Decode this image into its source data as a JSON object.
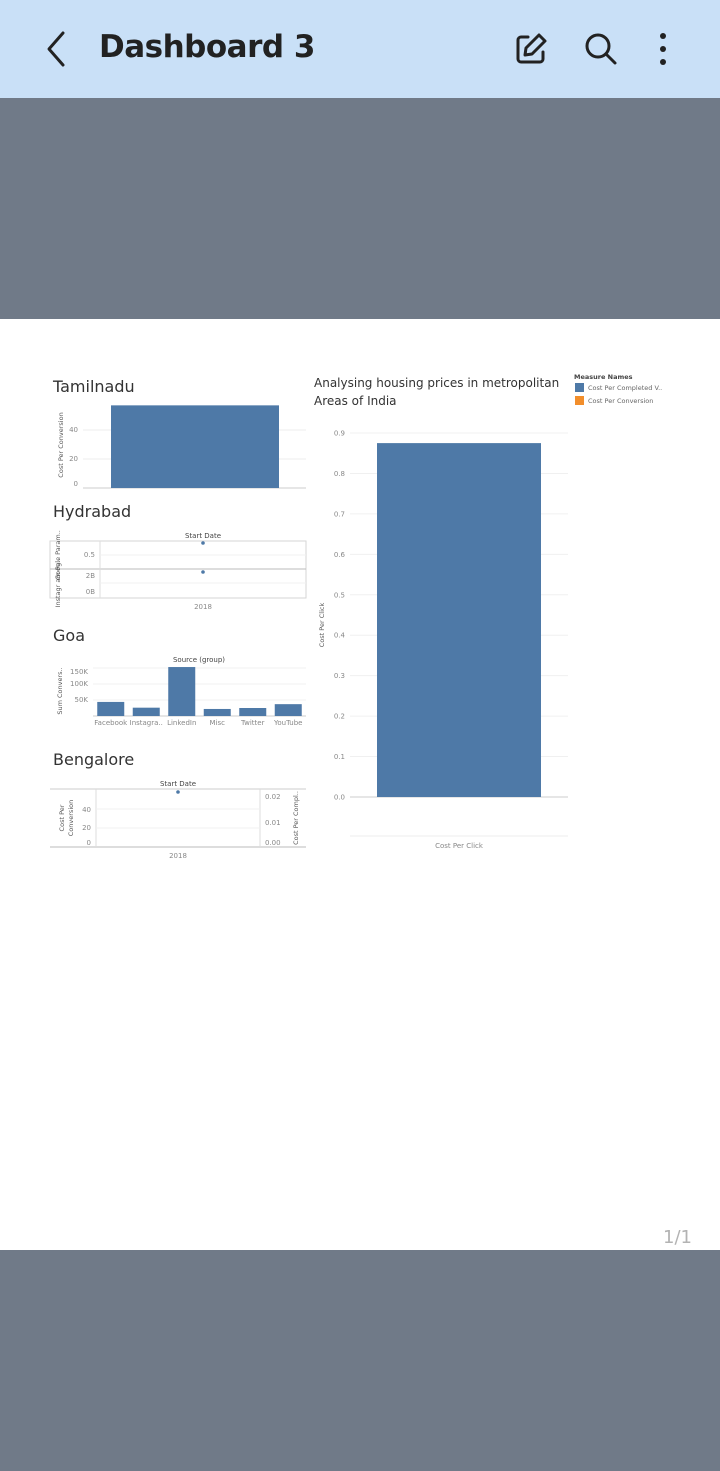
{
  "app": {
    "title": "Dashboard 3",
    "accent_color": "#c9e0f7",
    "icons": [
      "back-arrow-icon",
      "edit-icon",
      "search-icon",
      "more-vert-icon"
    ]
  },
  "page_number": "1/1",
  "dashboard": {
    "tamilnadu": {
      "title": "Tamilnadu",
      "ylabel": "Cost Per Conversion",
      "ticks": [
        "40",
        "20",
        "0"
      ]
    },
    "hydrabad": {
      "title": "Hydrabad",
      "header": "Start Date",
      "row1_label": "Google Param..",
      "row2_label": "Instagr am Pa..",
      "row1_tick": "0.5",
      "row2_ticks": [
        "2B",
        "0B"
      ],
      "xtick": "2018"
    },
    "goa": {
      "title": "Goa",
      "header": "Source (group)",
      "ylabel": "Sum Convers..",
      "ticks": [
        "150K",
        "100K",
        "50K"
      ]
    },
    "bengalore": {
      "title": "Bengalore",
      "header": "Start Date",
      "ylabel_left": "Cost Per Conversion",
      "ylabel_right": "Cost Per Compl..",
      "left_ticks": [
        "40",
        "20",
        "0"
      ],
      "right_ticks": [
        "0.02",
        "0.01",
        "0.00"
      ],
      "xtick": "2018"
    },
    "main": {
      "title_line1": "Analysing housing prices in metropolitan",
      "title_line2": "Areas of India",
      "ylabel": "Cost Per Click",
      "xlabel": "Cost Per Click"
    },
    "legend": {
      "title": "Measure Names",
      "items": [
        {
          "label": "Cost Per Completed V..",
          "color": "#4e79a7"
        },
        {
          "label": "Cost Per Conversion",
          "color": "#f28e2b"
        }
      ]
    }
  },
  "chart_data": [
    {
      "type": "bar",
      "title": "Tamilnadu",
      "ylabel": "Cost Per Conversion",
      "categories": [
        ""
      ],
      "values": [
        57
      ],
      "ylim": [
        0,
        60
      ]
    },
    {
      "type": "scatter",
      "title": "Hydrabad",
      "xlabel": "Start Date",
      "series": [
        {
          "name": "Google Param..",
          "x": [
            "2018"
          ],
          "values": [
            0.62
          ]
        },
        {
          "name": "Instagr am Pa..",
          "x": [
            "2018"
          ],
          "values": [
            2.4
          ]
        }
      ]
    },
    {
      "type": "bar",
      "title": "Goa",
      "xlabel": "Source (group)",
      "ylabel": "Sum Convers..",
      "categories": [
        "Facebook",
        "Instagra..",
        "LinkedIn",
        "Misc",
        "Twitter",
        "YouTube"
      ],
      "values": [
        44000,
        26000,
        153000,
        22000,
        25000,
        37000
      ],
      "ylim": [
        0,
        160000
      ]
    },
    {
      "type": "scatter",
      "title": "Bengalore",
      "xlabel": "Start Date",
      "series": [
        {
          "name": "Cost Per Conversion",
          "x": [
            "2018"
          ],
          "values": [
            59
          ]
        }
      ]
    },
    {
      "type": "bar",
      "title": "Analysing housing prices in metropolitan Areas of India",
      "ylabel": "Cost Per Click",
      "xlabel": "Cost Per Click",
      "categories": [
        ""
      ],
      "values": [
        0.875
      ],
      "ylim": [
        0,
        0.9
      ],
      "yticks": [
        "0.9",
        "0.8",
        "0.7",
        "0.6",
        "0.5",
        "0.4",
        "0.3",
        "0.2",
        "0.1",
        "0.0"
      ]
    }
  ]
}
